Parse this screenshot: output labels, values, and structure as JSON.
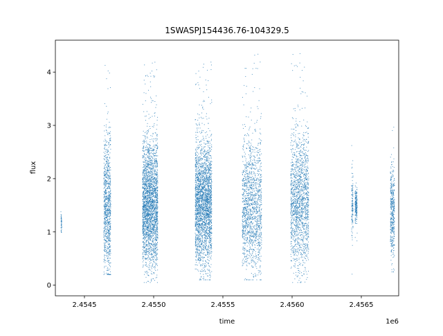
{
  "chart_data": {
    "type": "scatter",
    "title": "1SWASPJ154436.76-104329.5",
    "xlabel": "time",
    "ylabel": "flux",
    "x_offset_label": "1e6",
    "x_unit_multiplier": 1000000,
    "xlim": [
      2454290,
      2456770
    ],
    "ylim": [
      -0.2,
      4.6
    ],
    "x_ticks": [
      2.4545,
      2.455,
      2.4555,
      2.456,
      2.4565
    ],
    "x_tick_labels": [
      "2.4545",
      "2.4550",
      "2.4555",
      "2.4560",
      "2.4565"
    ],
    "y_ticks": [
      0,
      1,
      2,
      3,
      4
    ],
    "y_tick_labels": [
      "0",
      "1",
      "2",
      "3",
      "4"
    ],
    "grid": false,
    "marker_color": "#1f77b4",
    "series": [
      {
        "clusters": [
          {
            "x_start": 2454330,
            "x_end": 2454336,
            "y_median": 1.15,
            "y_low": 0.7,
            "y_high": 1.6,
            "points": 40
          },
          {
            "x_start": 2454640,
            "x_end": 2454690,
            "y_median": 1.5,
            "y_low": 0.2,
            "y_high": 4.4,
            "points": 900
          },
          {
            "x_start": 2454920,
            "x_end": 2455030,
            "y_median": 1.55,
            "y_low": 0.05,
            "y_high": 4.2,
            "points": 2600
          },
          {
            "x_start": 2455300,
            "x_end": 2455420,
            "y_median": 1.55,
            "y_low": 0.1,
            "y_high": 4.2,
            "points": 2600
          },
          {
            "x_start": 2455640,
            "x_end": 2455780,
            "y_median": 1.5,
            "y_low": 0.1,
            "y_high": 4.35,
            "points": 1500
          },
          {
            "x_start": 2455990,
            "x_end": 2456120,
            "y_median": 1.6,
            "y_low": 0.05,
            "y_high": 4.4,
            "points": 1600
          },
          {
            "x_start": 2456430,
            "x_end": 2456440,
            "y_median": 1.5,
            "y_low": 0.2,
            "y_high": 2.9,
            "points": 120
          },
          {
            "x_start": 2456455,
            "x_end": 2456470,
            "y_median": 1.5,
            "y_low": 0.8,
            "y_high": 2.2,
            "points": 180
          },
          {
            "x_start": 2456710,
            "x_end": 2456740,
            "y_median": 1.4,
            "y_low": 0.25,
            "y_high": 3.5,
            "points": 420
          }
        ]
      }
    ]
  }
}
